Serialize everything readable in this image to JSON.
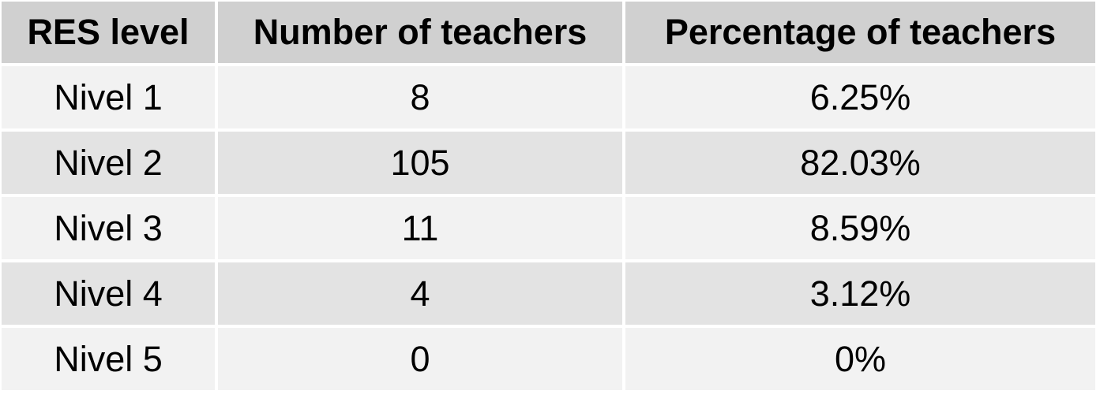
{
  "table": {
    "headers": [
      "RES level",
      "Number of teachers",
      "Percentage of teachers"
    ],
    "rows": [
      [
        "Nivel 1",
        "8",
        "6.25%"
      ],
      [
        "Nivel 2",
        "105",
        "82.03%"
      ],
      [
        "Nivel 3",
        "11",
        "8.59%"
      ],
      [
        "Nivel 4",
        "4",
        "3.12%"
      ],
      [
        "Nivel 5",
        "0",
        "0%"
      ]
    ]
  },
  "colors": {
    "header_bg": "#d0d0d0",
    "row_light": "#f2f2f2",
    "row_dark": "#e3e3e3",
    "border": "#ffffff"
  }
}
